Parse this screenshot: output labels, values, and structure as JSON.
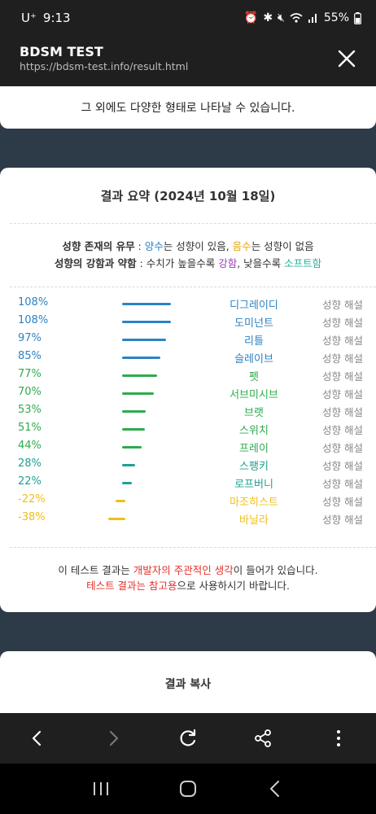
{
  "status": {
    "carrier": "U⁺",
    "time": "9:13",
    "battery": "55%"
  },
  "appbar": {
    "title": "BDSM TEST",
    "url": "https://bdsm-test.info/result.html"
  },
  "card1": {
    "text": "그 외에도 다양한 형태로 나타날 수 있습니다."
  },
  "summary": {
    "heading": "결과 요약 (2024년 10월 18일)",
    "legend1": {
      "label": "성향 존재의 유무",
      "sep": " : ",
      "pos": "양수",
      "mid": "는 성향이 있음, ",
      "neg": "음수",
      "end": "는 성향이 없음"
    },
    "legend2": {
      "label": "성향의 강함과 약함",
      "sep": " : 수치가 높을수록 ",
      "strong": "강함",
      "mid": ", 낮을수록 ",
      "soft": "소프트함"
    },
    "rows": [
      {
        "pct": "108%",
        "value": 108,
        "name": "디그레이디",
        "desc": "성향 해설",
        "color": "#2b83c5"
      },
      {
        "pct": "108%",
        "value": 108,
        "name": "도미넌트",
        "desc": "성향 해설",
        "color": "#2b83c5"
      },
      {
        "pct": "97%",
        "value": 97,
        "name": "리틀",
        "desc": "성향 해설",
        "color": "#2b83c5"
      },
      {
        "pct": "85%",
        "value": 85,
        "name": "슬레이브",
        "desc": "성향 해설",
        "color": "#2b83c5"
      },
      {
        "pct": "77%",
        "value": 77,
        "name": "펫",
        "desc": "성향 해설",
        "color": "#2eab4d"
      },
      {
        "pct": "70%",
        "value": 70,
        "name": "서브미시브",
        "desc": "성향 해설",
        "color": "#2eab4d"
      },
      {
        "pct": "53%",
        "value": 53,
        "name": "브랫",
        "desc": "성향 해설",
        "color": "#2eab4d"
      },
      {
        "pct": "51%",
        "value": 51,
        "name": "스위치",
        "desc": "성향 해설",
        "color": "#2eab4d"
      },
      {
        "pct": "44%",
        "value": 44,
        "name": "프레이",
        "desc": "성향 해설",
        "color": "#2eab4d"
      },
      {
        "pct": "28%",
        "value": 28,
        "name": "스팽키",
        "desc": "성향 해설",
        "color": "#22a08f"
      },
      {
        "pct": "22%",
        "value": 22,
        "name": "로프버니",
        "desc": "성향 해설",
        "color": "#22a08f"
      },
      {
        "pct": "-22%",
        "value": -22,
        "name": "마조히스트",
        "desc": "성향 해설",
        "color": "#efbf1a"
      },
      {
        "pct": "-38%",
        "value": -38,
        "name": "바닐라",
        "desc": "성향 해설",
        "color": "#efbf1a"
      }
    ],
    "note1": {
      "a": "이 테스트 결과는 ",
      "b": "개발자의 주관적인 생각",
      "c": "이 들어가 있습니다."
    },
    "note2": {
      "a": "테스트 결과는 참고용",
      "b": "으로 사용하시기 바랍니다."
    }
  },
  "card3": {
    "heading": "결과 복사"
  },
  "icons": {
    "back": "back-icon",
    "forward": "forward-icon",
    "reload": "reload-icon",
    "share": "share-icon",
    "menu": "more-vert-icon",
    "recents": "recents-icon",
    "home": "home-icon",
    "navback": "nav-back-icon"
  }
}
